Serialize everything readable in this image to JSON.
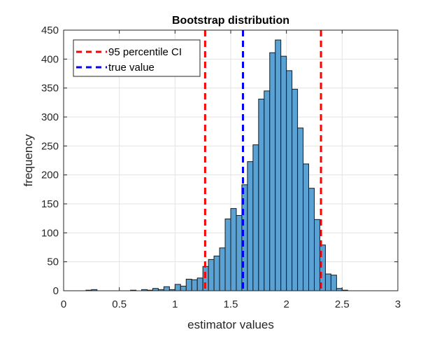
{
  "chart_data": {
    "type": "bar",
    "title": "Bootstrap distribution",
    "xlabel": "estimator values",
    "ylabel": "frequency",
    "xlim": [
      0,
      3
    ],
    "ylim": [
      0,
      450
    ],
    "xticks": [
      0,
      0.5,
      1,
      1.5,
      2,
      2.5,
      3
    ],
    "xtick_labels": [
      "0",
      "0.5",
      "1",
      "1.5",
      "2",
      "2.5",
      "3"
    ],
    "yticks": [
      0,
      50,
      100,
      150,
      200,
      250,
      300,
      350,
      400,
      450
    ],
    "ytick_labels": [
      "0",
      "50",
      "100",
      "150",
      "200",
      "250",
      "300",
      "350",
      "400",
      "450"
    ],
    "grid": true,
    "bin_width": 0.05,
    "bin_starts": [
      0.2,
      0.25,
      0.3,
      0.35,
      0.4,
      0.45,
      0.5,
      0.55,
      0.6,
      0.65,
      0.7,
      0.75,
      0.8,
      0.85,
      0.9,
      0.95,
      1.0,
      1.05,
      1.1,
      1.15,
      1.2,
      1.25,
      1.3,
      1.35,
      1.4,
      1.45,
      1.5,
      1.55,
      1.6,
      1.65,
      1.7,
      1.75,
      1.8,
      1.85,
      1.9,
      1.95,
      2.0,
      2.05,
      2.1,
      2.15,
      2.2,
      2.25,
      2.3,
      2.35,
      2.4,
      2.45,
      2.5
    ],
    "values": [
      1,
      2,
      0,
      0,
      0,
      0,
      0,
      0,
      1,
      0,
      2,
      1,
      4,
      2,
      7,
      2,
      11,
      8,
      20,
      19,
      22,
      42,
      54,
      60,
      74,
      124,
      142,
      130,
      183,
      223,
      252,
      331,
      345,
      411,
      433,
      405,
      380,
      348,
      281,
      219,
      177,
      123,
      79,
      29,
      27,
      4,
      1
    ],
    "bar_color": "#5aa2d4",
    "vlines": [
      {
        "name": "95 percentile CI",
        "x": 1.27,
        "color": "#ff0000"
      },
      {
        "name": "true value",
        "x": 1.61,
        "color": "#0000ff"
      },
      {
        "name": "95 percentile CI",
        "x": 2.31,
        "color": "#ff0000"
      }
    ],
    "legend": {
      "placement": "top-left",
      "entries": [
        {
          "label": "95 percentile CI",
          "color": "#ff0000"
        },
        {
          "label": "true value",
          "color": "#0000ff"
        }
      ]
    }
  }
}
